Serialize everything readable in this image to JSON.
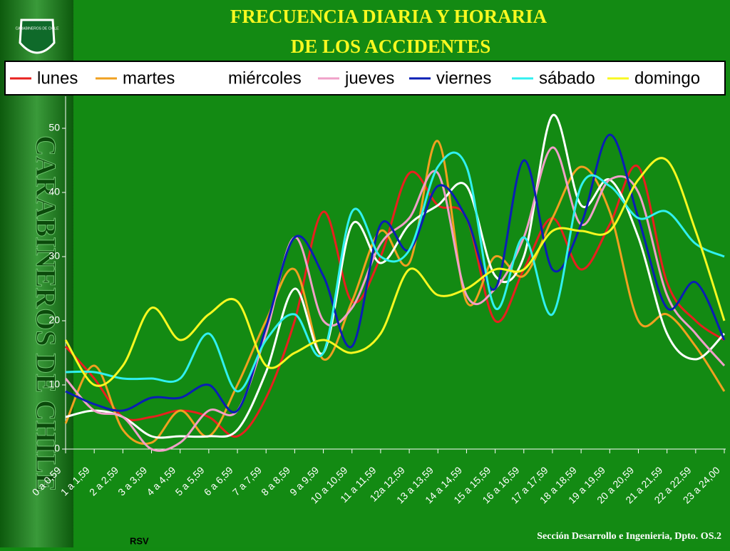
{
  "chart_data": {
    "type": "line",
    "title": [
      "FRECUENCIA DIARIA Y HORARIA",
      "DE LOS ACCIDENTES"
    ],
    "categories": [
      "0 a 0,59",
      "1 a 1,59",
      "2 a 2,59",
      "3 a 3,59",
      "4 a 4,59",
      "5 a 5,59",
      "6 a 6,59",
      "7 a 7,59",
      "8 a 8,59",
      "9 a 9,59",
      "10 a 10,59",
      "11 a 11,59",
      "12a 12,59",
      "13 a 13,59",
      "14 a 14,59",
      "15 a 15,59",
      "16 a 16,59",
      "17 a 17,59",
      "18 a 18,59",
      "19 a 19,59",
      "20 a 20,59",
      "21 a 21,59",
      "22 a 22,59",
      "23 a 24,00"
    ],
    "series": [
      {
        "name": "lunes",
        "color": "#e8201e",
        "values": [
          16,
          11,
          5,
          5,
          6,
          5,
          2,
          8,
          20,
          37,
          23,
          30,
          43,
          38,
          36,
          20,
          28,
          36,
          28,
          35,
          44,
          26,
          20,
          17
        ]
      },
      {
        "name": "martes",
        "color": "#f0a020",
        "values": [
          4,
          13,
          3,
          1,
          6,
          2,
          10,
          20,
          28,
          14,
          23,
          34,
          29,
          48,
          23,
          30,
          27,
          36,
          44,
          37,
          20,
          21,
          16,
          9
        ]
      },
      {
        "name": "miércoles",
        "color": "#ffffff",
        "values": [
          5,
          6,
          5,
          2,
          2,
          2,
          3,
          12,
          25,
          15,
          35,
          29,
          35,
          38,
          41,
          27,
          30,
          52,
          38,
          42,
          33,
          18,
          14,
          18
        ]
      },
      {
        "name": "jueves",
        "color": "#f0a0c8",
        "values": [
          11,
          6,
          5,
          0,
          1,
          6,
          6,
          18,
          33,
          20,
          22,
          32,
          36,
          43,
          24,
          25,
          33,
          47,
          35,
          42,
          40,
          24,
          18,
          13
        ]
      },
      {
        "name": "viernes",
        "color": "#0a1eb4",
        "values": [
          9,
          7,
          6,
          8,
          8,
          10,
          6,
          19,
          33,
          27,
          16,
          35,
          31,
          41,
          36,
          25,
          45,
          28,
          35,
          49,
          36,
          22,
          26,
          17
        ]
      },
      {
        "name": "sábado",
        "color": "#30f0f0",
        "values": [
          12,
          12,
          11,
          11,
          11,
          18,
          9,
          17,
          21,
          15,
          37,
          30,
          31,
          44,
          44,
          22,
          33,
          21,
          41,
          41,
          36,
          37,
          32,
          30
        ]
      },
      {
        "name": "domingo",
        "color": "#f8f820",
        "values": [
          17,
          10,
          13,
          22,
          17,
          21,
          23,
          13,
          15,
          17,
          15,
          18,
          28,
          24,
          25,
          28,
          28,
          34,
          34,
          34,
          42,
          45,
          34,
          20
        ]
      }
    ],
    "ylim": [
      0,
      55
    ],
    "yticks": [
      0,
      10,
      20,
      30,
      40,
      50
    ],
    "grid": false
  },
  "sidebar": "CARABINEROS DE CHILE",
  "badge": "CARABINEROS DE CHILE",
  "footer_left": "RSV",
  "footer_right": "Sección Desarrollo e Ingenieria, Dpto. OS.2"
}
